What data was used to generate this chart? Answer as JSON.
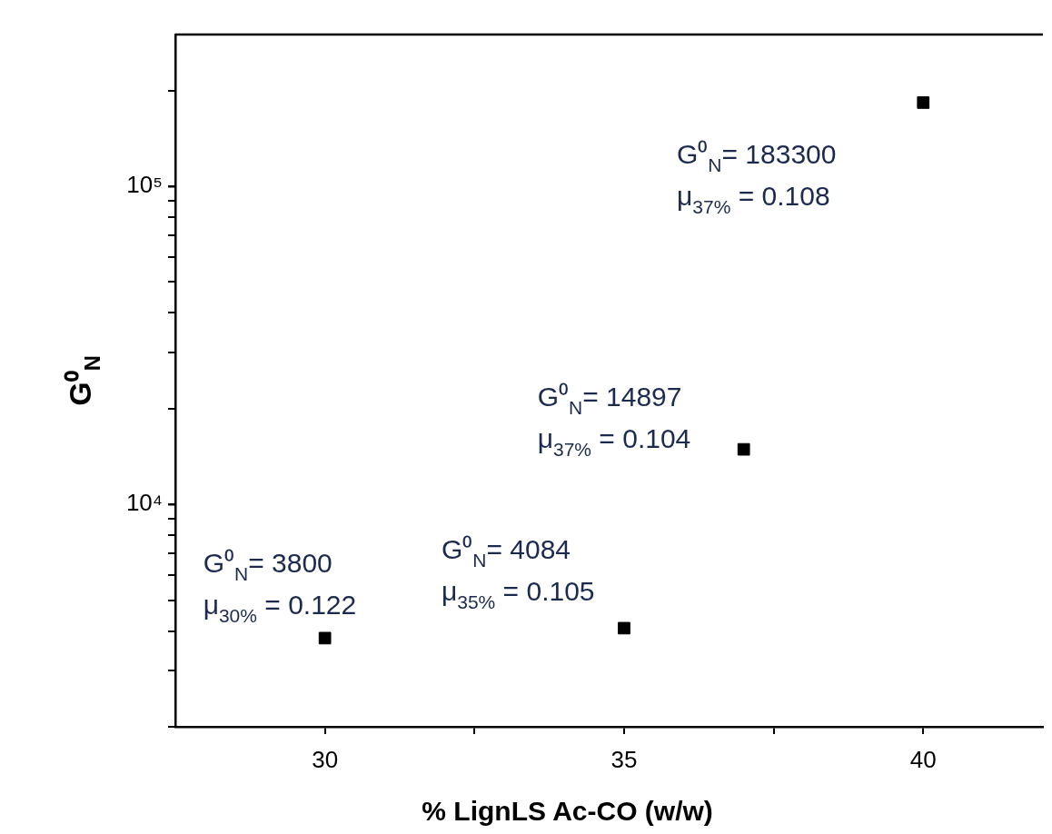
{
  "chart_data": {
    "type": "scatter",
    "xlabel": "% LignLS Ac-CO (w/w)",
    "ylabel": "G⁰$_{N}$",
    "x": [
      30,
      35,
      37,
      40
    ],
    "values": [
      3800,
      4084,
      14897,
      183300
    ],
    "color": "#000000",
    "marker": "square",
    "log": "y",
    "xlim": [
      27.5,
      42
    ],
    "xticks": [
      30,
      {
        "value": 32.5,
        "label": null
      },
      35,
      {
        "value": 37.5,
        "label": null
      },
      40
    ],
    "ylim": [
      2000,
      300000
    ],
    "yticks": [
      {
        "value": 2000,
        "label": null
      },
      {
        "value": 3000,
        "label": null
      },
      {
        "value": 4000,
        "label": null
      },
      {
        "value": 5000,
        "label": null
      },
      {
        "value": 6000,
        "label": null
      },
      {
        "value": 7000,
        "label": null
      },
      {
        "value": 8000,
        "label": null
      },
      {
        "value": 9000,
        "label": null
      },
      {
        "value": 10000,
        "label": "10⁴"
      },
      {
        "value": 20000,
        "label": null
      },
      {
        "value": 30000,
        "label": null
      },
      {
        "value": 40000,
        "label": null
      },
      {
        "value": 50000,
        "label": null
      },
      {
        "value": 60000,
        "label": null
      },
      {
        "value": 70000,
        "label": null
      },
      {
        "value": 80000,
        "label": null
      },
      {
        "value": 90000,
        "label": null
      },
      {
        "value": 100000,
        "label": "10⁵"
      },
      {
        "value": 200000,
        "label": null
      }
    ],
    "grid": false,
    "legend": false,
    "annotations": [
      {
        "text": "G⁰$_{N}$= 3800\nμ$_{30%}$ = 0.122",
        "x": 30,
        "y": 3800
      },
      {
        "text": "G⁰$_{N}$= 4084\nμ$_{35%}$ = 0.105",
        "x": 35,
        "y": 4084
      },
      {
        "text": "G⁰$_{N}$= 14897\nμ$_{37%}$ = 0.104",
        "x": 37,
        "y": 14897
      },
      "G⁰$_{N}$= 183300\nμ$_{37%}$ = 0.108"
    ]
  }
}
